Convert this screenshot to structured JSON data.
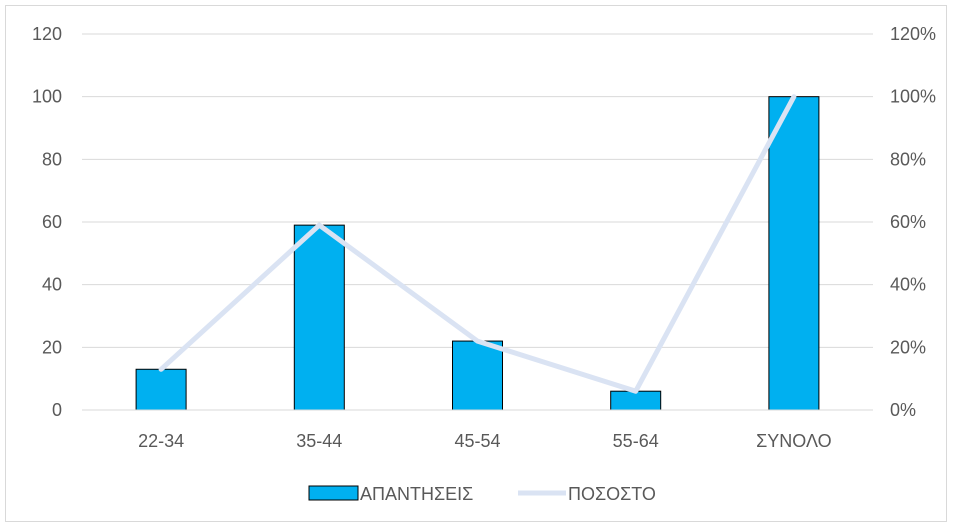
{
  "chart_data": {
    "type": "bar",
    "categories": [
      "22-34",
      "35-44",
      "45-54",
      "55-64",
      "ΣΥΝΟΛΟ"
    ],
    "series": [
      {
        "name": "ΑΠΑΝΤΗΣΕΙΣ",
        "type": "bar",
        "axis": "left",
        "color": "#00b0f0",
        "values": [
          13,
          59,
          22,
          6,
          100
        ]
      },
      {
        "name": "ΠΟΣΟΣΤΟ",
        "type": "line",
        "axis": "right",
        "color": "#dae3f3",
        "values": [
          0.13,
          0.59,
          0.22,
          0.06,
          1.0
        ]
      }
    ],
    "ylim": [
      0,
      120
    ],
    "y2lim": [
      0,
      1.2
    ],
    "yticks": [
      "0",
      "20",
      "40",
      "60",
      "80",
      "100",
      "120"
    ],
    "y2ticks": [
      "0%",
      "20%",
      "40%",
      "60%",
      "80%",
      "100%",
      "120%"
    ],
    "grid": true,
    "legend": "bottom",
    "title": "",
    "xlabel": "",
    "ylabel": ""
  }
}
